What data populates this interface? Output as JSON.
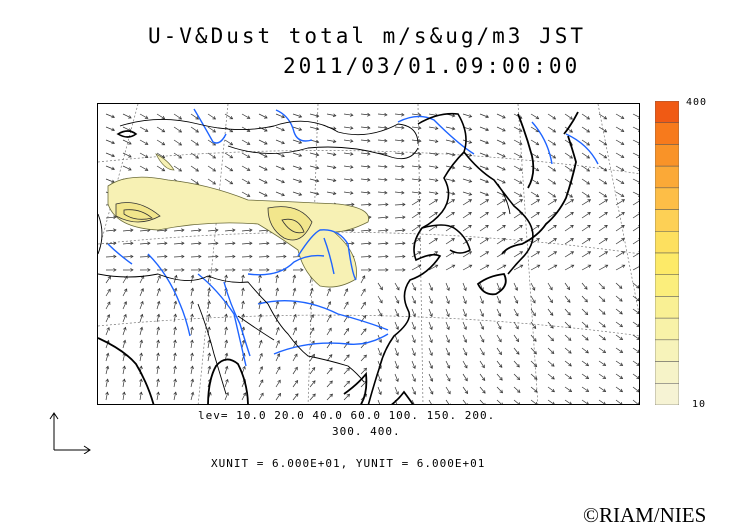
{
  "title": {
    "line1": "U-V&Dust total m/s&ug/m3 JST",
    "line2": "2011/03/01.09:00:00"
  },
  "contour_levels": {
    "line1": "lev= 10.0 20.0 40.0 60.0 100. 150. 200.",
    "line2": "300. 400."
  },
  "units": {
    "text": "XUNIT = 6.000E+01, YUNIT = 6.000E+01"
  },
  "colorbar": {
    "max_label": "400",
    "min_label": "10",
    "colors": [
      "#f05a14",
      "#f77a1c",
      "#f99328",
      "#fba937",
      "#fdbe47",
      "#fdd055",
      "#fde05f",
      "#fdea68",
      "#fbee7c",
      "#f9f094",
      "#f8f2a8",
      "#f7f3ba",
      "#f6f3c8",
      "#f6f3d4"
    ]
  },
  "map": {
    "coastline_color": "#000000",
    "river_color": "#1e64ff",
    "dust_fill_color": "#f7f1b4",
    "dust_outline_color": "#6b6b3a",
    "wind_arrow_color": "#333333"
  },
  "credit": "©RIAM/NIES"
}
